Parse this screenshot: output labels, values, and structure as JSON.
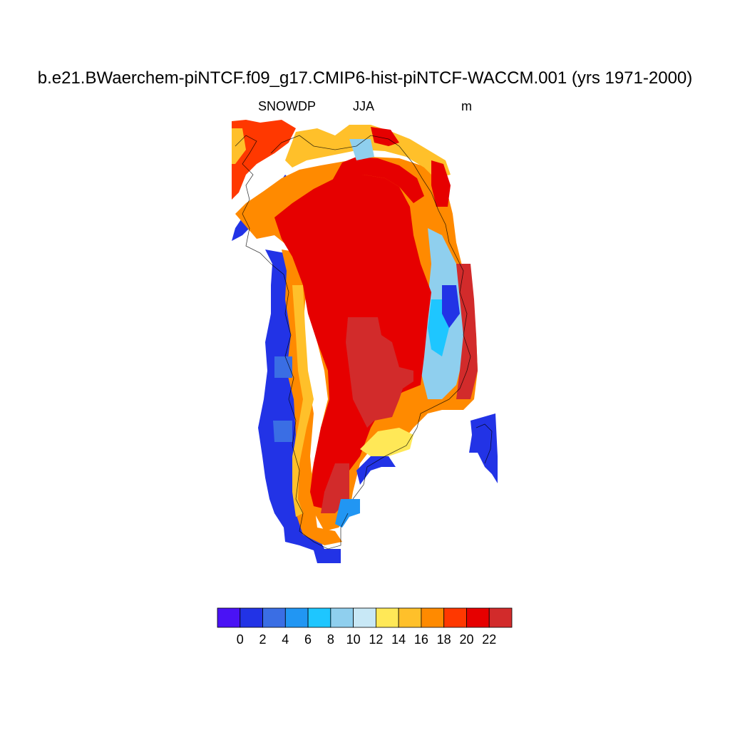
{
  "title": "b.e21.BWaerchem-piNTCF.f09_g17.CMIP6-hist-piNTCF-WACCM.001 (yrs 1971-2000)",
  "left_label": "SNOWDP",
  "center_label": "JJA",
  "right_label": "m",
  "colorbar": {
    "colors": [
      "#4a12f5",
      "#2233e6",
      "#3a6ee4",
      "#2196f3",
      "#1ec6ff",
      "#8fcfee",
      "#c8e8f6",
      "#ffe857",
      "#ffc02a",
      "#ff8a00",
      "#ff3800",
      "#e60000",
      "#d22b2b"
    ],
    "labels": [
      "0",
      "2",
      "4",
      "6",
      "8",
      "10",
      "12",
      "14",
      "16",
      "18",
      "20",
      "22"
    ]
  },
  "chart_data": {
    "type": "heatmap",
    "variable": "SNOWDP",
    "season": "JJA",
    "units": "m",
    "levels": [
      0,
      1,
      2,
      3,
      4,
      5,
      6,
      7,
      8,
      9,
      10,
      11,
      12,
      13,
      14,
      15,
      16,
      17,
      18,
      19,
      20,
      21,
      22,
      23
    ],
    "contour_levels_labeled": [
      0,
      2,
      4,
      6,
      8,
      10,
      12,
      14,
      16,
      18,
      20,
      22
    ],
    "ice_sheet_interior_value": ">= 20",
    "central_max_region_value": "> 22",
    "coastal_margin_values": "0 - 2"
  }
}
